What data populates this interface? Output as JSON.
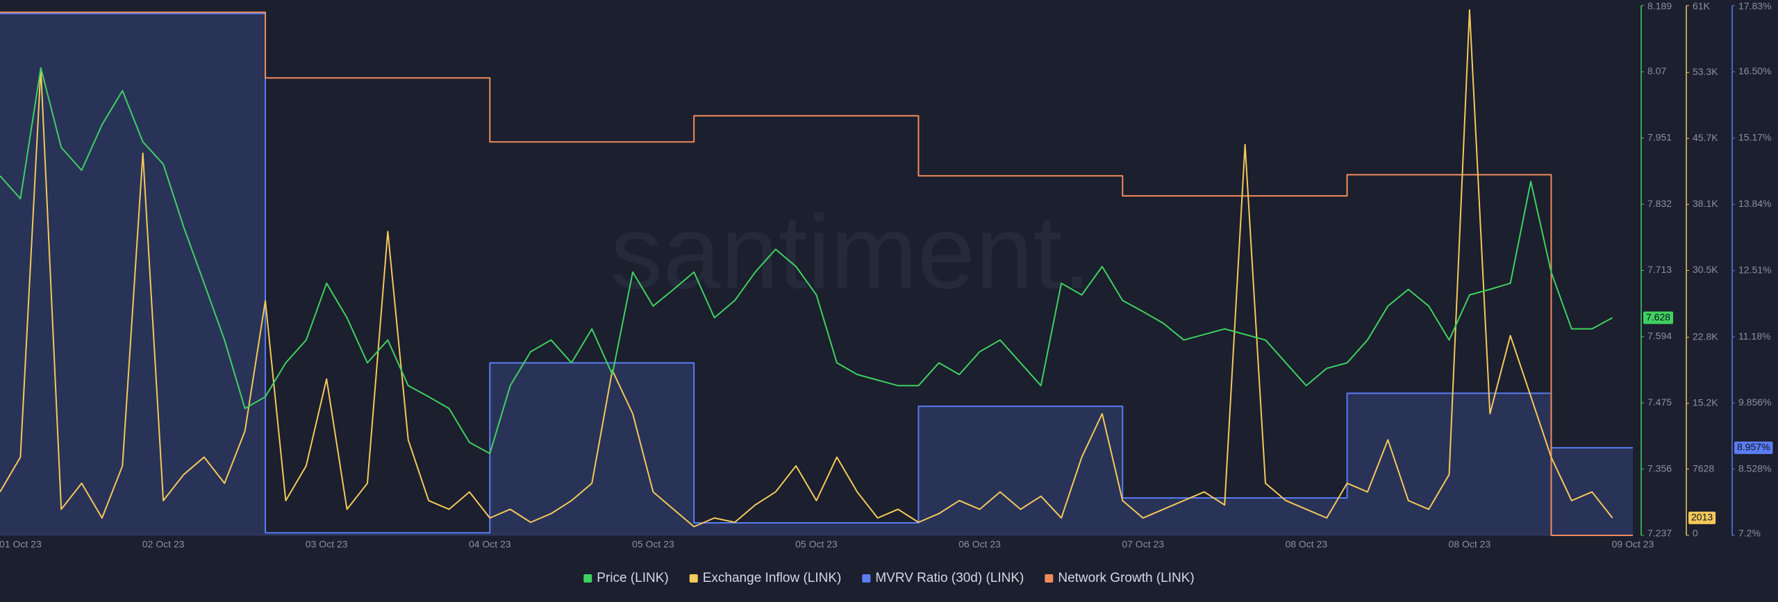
{
  "chart_data": {
    "type": "line",
    "watermark": "santiment.",
    "categories": [
      null,
      "01 Oct 23",
      null,
      null,
      null,
      null,
      null,
      null,
      "02 Oct 23",
      null,
      null,
      null,
      null,
      null,
      null,
      null,
      "03 Oct 23",
      null,
      null,
      null,
      null,
      null,
      null,
      null,
      "04 Oct 23",
      null,
      null,
      null,
      null,
      null,
      null,
      null,
      "05 Oct 23",
      null,
      null,
      null,
      null,
      null,
      null,
      null,
      "05 Oct 23",
      null,
      null,
      null,
      null,
      null,
      null,
      null,
      "06 Oct 23",
      null,
      null,
      null,
      null,
      null,
      null,
      null,
      "07 Oct 23",
      null,
      null,
      null,
      null,
      null,
      null,
      null,
      "08 Oct 23",
      null,
      null,
      null,
      null,
      null,
      null,
      null,
      "08 Oct 23",
      null,
      null,
      null,
      null,
      null,
      null,
      null,
      "09 Oct 23"
    ],
    "ylim": [
      7.237,
      8.189
    ],
    "yticks": [
      7.237,
      7.356,
      7.475,
      7.594,
      7.713,
      7.832,
      7.951,
      8.07,
      8.189
    ],
    "y2lim": [
      0,
      61000
    ],
    "y2ticks": [
      0,
      7628,
      {
        "value": 15200,
        "label": "15.2K"
      },
      {
        "value": 22800,
        "label": "22.8K"
      },
      {
        "value": 30500,
        "label": "30.5K"
      },
      {
        "value": 38100,
        "label": "38.1K"
      },
      {
        "value": 45700,
        "label": "45.7K"
      },
      {
        "value": 53300,
        "label": "53.3K"
      },
      {
        "value": 61000,
        "label": "61K"
      }
    ],
    "y3lim": [
      7.2,
      17.83
    ],
    "y3ticks": [
      {
        "value": 7.2,
        "label": "7.2%"
      },
      {
        "value": 8.528,
        "label": "8.528%"
      },
      {
        "value": 9.856,
        "label": "9.856%"
      },
      {
        "value": 11.18,
        "label": "11.18%"
      },
      {
        "value": 12.51,
        "label": "12.51%"
      },
      {
        "value": 13.84,
        "label": "13.84%"
      },
      {
        "value": 15.17,
        "label": "15.17%"
      },
      {
        "value": 16.5,
        "label": "16.50%"
      },
      {
        "value": 17.83,
        "label": "17.83%"
      }
    ],
    "series": [
      {
        "name": "MVRV Ratio (30d) (LINK)",
        "color": "#5b7cf2",
        "axis": "y3",
        "step": true,
        "area": true,
        "badge": "8.957%",
        "values": [
          17.67,
          17.67,
          17.67,
          17.67,
          17.67,
          17.67,
          17.67,
          17.67,
          17.67,
          17.67,
          17.67,
          17.67,
          17.67,
          7.25,
          7.25,
          7.25,
          7.25,
          7.25,
          7.25,
          7.25,
          7.25,
          7.25,
          7.25,
          7.25,
          10.66,
          10.66,
          10.66,
          10.66,
          10.66,
          10.66,
          10.66,
          10.66,
          10.66,
          10.66,
          7.45,
          7.45,
          7.45,
          7.45,
          7.45,
          7.45,
          7.45,
          7.45,
          7.45,
          7.45,
          7.45,
          9.79,
          9.79,
          9.79,
          9.79,
          9.79,
          9.79,
          9.79,
          9.79,
          9.79,
          9.79,
          7.95,
          7.95,
          7.95,
          7.95,
          7.95,
          7.95,
          7.95,
          7.95,
          7.95,
          7.95,
          7.95,
          10.05,
          10.05,
          10.05,
          10.05,
          10.05,
          10.05,
          10.05,
          10.05,
          10.05,
          10.05,
          8.957,
          8.957,
          8.957,
          8.957,
          null
        ]
      },
      {
        "name": "Network Growth (LINK)",
        "color": "#f38b5c",
        "axis": "y",
        "step": true,
        "values": [
          8.177,
          8.177,
          8.177,
          8.177,
          8.177,
          8.177,
          8.177,
          8.177,
          8.177,
          8.177,
          8.177,
          8.177,
          8.177,
          8.059,
          8.059,
          8.059,
          8.059,
          8.059,
          8.059,
          8.059,
          8.059,
          8.059,
          8.059,
          8.059,
          7.944,
          7.944,
          7.944,
          7.944,
          7.944,
          7.944,
          7.944,
          7.944,
          7.944,
          7.944,
          7.991,
          7.991,
          7.991,
          7.991,
          7.991,
          7.991,
          7.991,
          7.991,
          7.991,
          7.991,
          7.991,
          7.883,
          7.883,
          7.883,
          7.883,
          7.883,
          7.883,
          7.883,
          7.883,
          7.883,
          7.883,
          7.847,
          7.847,
          7.847,
          7.847,
          7.847,
          7.847,
          7.847,
          7.847,
          7.847,
          7.847,
          7.847,
          7.885,
          7.885,
          7.885,
          7.885,
          7.885,
          7.885,
          7.885,
          7.885,
          7.885,
          7.885,
          7.237,
          7.237,
          7.237,
          7.237,
          null
        ]
      },
      {
        "name": "Exchange Inflow (LINK)",
        "color": "#f5c85a",
        "axis": "y2",
        "badge": "2013",
        "values": [
          5000,
          9000,
          53800,
          3000,
          6000,
          2000,
          8000,
          44000,
          4000,
          7000,
          9000,
          6000,
          12000,
          27000,
          4000,
          8000,
          18000,
          3000,
          6000,
          35000,
          11000,
          4000,
          3000,
          5000,
          2000,
          3000,
          1500,
          2500,
          4000,
          6000,
          19000,
          14000,
          5000,
          3000,
          1000,
          2000,
          1500,
          3500,
          5000,
          8000,
          4000,
          9000,
          5000,
          2000,
          3000,
          1500,
          2500,
          4000,
          3000,
          5000,
          3000,
          4500,
          2000,
          9000,
          14000,
          4000,
          2000,
          3000,
          4000,
          5000,
          3500,
          45000,
          6000,
          4000,
          3000,
          2000,
          6000,
          5000,
          11000,
          4000,
          3000,
          7000,
          60500,
          14000,
          23000,
          16000,
          9000,
          4000,
          5000,
          2013,
          null
        ]
      },
      {
        "name": "Price (LINK)",
        "color": "#3fd160",
        "axis": "y",
        "badge": "7.628",
        "values": [
          7.883,
          7.842,
          8.077,
          7.934,
          7.893,
          7.975,
          8.036,
          7.944,
          7.904,
          7.791,
          7.69,
          7.588,
          7.465,
          7.486,
          7.547,
          7.588,
          7.69,
          7.628,
          7.547,
          7.588,
          7.506,
          7.486,
          7.465,
          7.404,
          7.384,
          7.506,
          7.567,
          7.588,
          7.547,
          7.608,
          7.526,
          7.71,
          7.649,
          7.679,
          7.71,
          7.628,
          7.659,
          7.71,
          7.751,
          7.72,
          7.669,
          7.547,
          7.526,
          7.516,
          7.506,
          7.506,
          7.547,
          7.526,
          7.567,
          7.588,
          7.547,
          7.506,
          7.69,
          7.669,
          7.72,
          7.659,
          7.639,
          7.618,
          7.588,
          7.598,
          7.608,
          7.598,
          7.588,
          7.547,
          7.506,
          7.537,
          7.547,
          7.588,
          7.649,
          7.679,
          7.649,
          7.588,
          7.669,
          7.679,
          7.69,
          7.873,
          7.71,
          7.608,
          7.608,
          7.628,
          null
        ]
      }
    ]
  }
}
